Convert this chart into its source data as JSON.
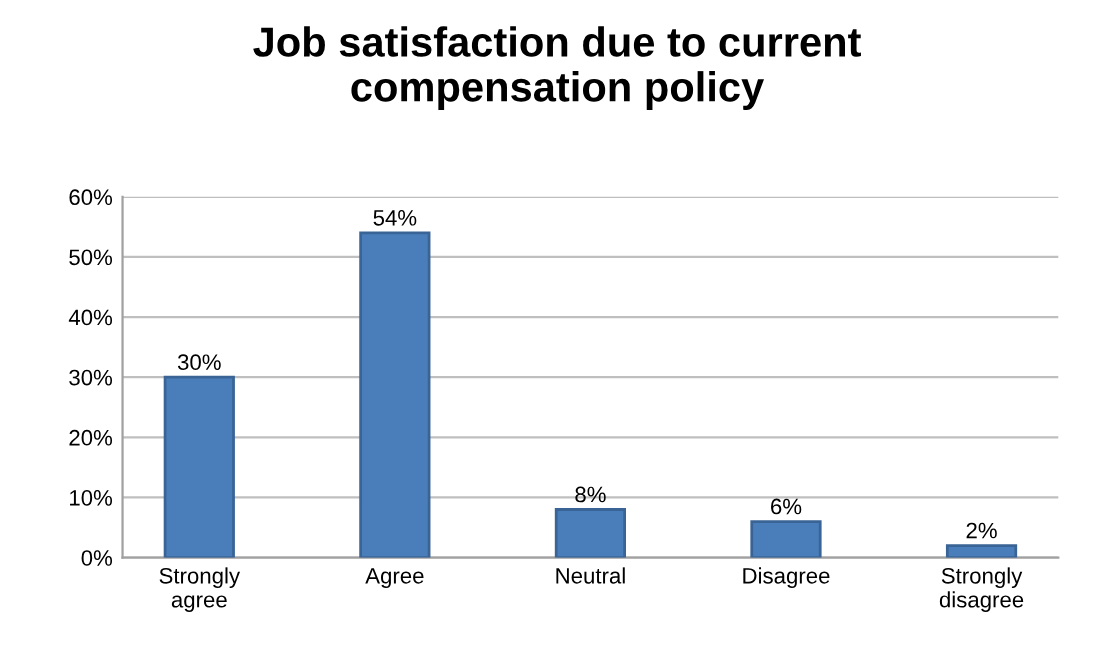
{
  "chart_data": {
    "type": "bar",
    "title": "Job satisfaction due to current\ncompensation policy",
    "categories": [
      "Strongly\nagree",
      "Agree",
      "Neutral",
      "Disagree",
      "Strongly\ndisagree"
    ],
    "values": [
      30,
      54,
      8,
      6,
      2
    ],
    "value_labels": [
      "30%",
      "54%",
      "8%",
      "6%",
      "2%"
    ],
    "color": "#4a7ebb",
    "ylim": [
      0,
      60
    ],
    "yticks": [
      {
        "value": 0,
        "label": "0%"
      },
      {
        "value": 10,
        "label": "10%"
      },
      {
        "value": 20,
        "label": "20%"
      },
      {
        "value": 30,
        "label": "30%"
      },
      {
        "value": 40,
        "label": "40%"
      },
      {
        "value": 50,
        "label": "50%"
      },
      {
        "value": 60,
        "label": "60%"
      }
    ],
    "grid": "y"
  }
}
